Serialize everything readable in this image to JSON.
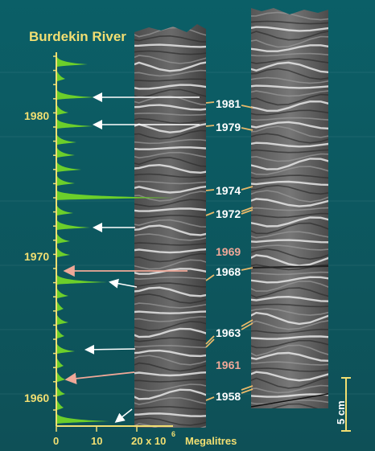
{
  "title": "Burdekin River",
  "axis": {
    "years": [
      "1980",
      "1970",
      "1960"
    ],
    "ticks": [
      "0",
      "10",
      "20 x 10",
      "6"
    ],
    "unit": "Megalitres"
  },
  "core_labels": [
    {
      "text": "1981",
      "highlight": false
    },
    {
      "text": "1979",
      "highlight": false
    },
    {
      "text": "1974",
      "highlight": false
    },
    {
      "text": "1972",
      "highlight": false
    },
    {
      "text": "1969",
      "highlight": true
    },
    {
      "text": "1968",
      "highlight": false
    },
    {
      "text": "1963",
      "highlight": false
    },
    {
      "text": "1961",
      "highlight": true
    },
    {
      "text": "1958",
      "highlight": false
    }
  ],
  "scale_bar": "5 cm",
  "colors": {
    "background_top": "#0a6068",
    "background_bottom": "#0f535a",
    "accent_yellow": "#f2df72",
    "discharge_green": "#6ccf2a",
    "arrow_white": "#ffffff",
    "arrow_pink": "#f0a898"
  }
}
